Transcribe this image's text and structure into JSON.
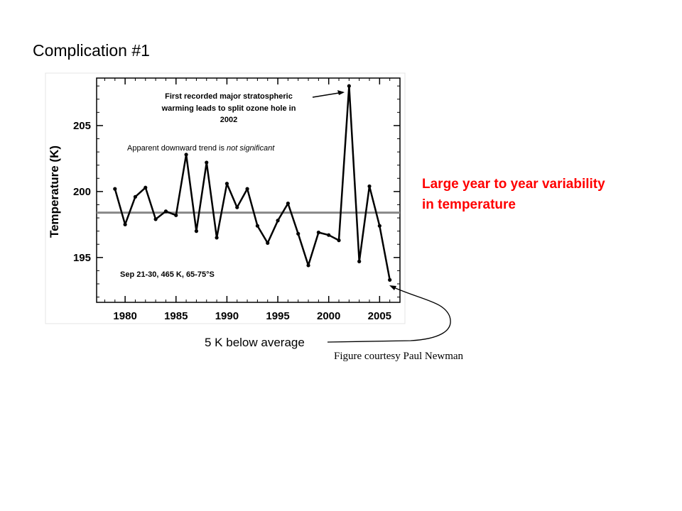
{
  "slide": {
    "title": "Complication #1",
    "side_note_lines": [
      "Large year to year variability",
      "in temperature"
    ],
    "callout": "5 K below average",
    "credit": "Figure courtesy Paul Newman"
  },
  "colors": {
    "side_note": "#ff0000",
    "series": "#000000",
    "mean_line": "#888888",
    "background": "#ffffff"
  },
  "chart_data": {
    "type": "line",
    "title": "",
    "xlabel": "",
    "ylabel": "Temperature (K)",
    "xlim": [
      1977.2,
      2007
    ],
    "ylim": [
      191.6,
      208.6
    ],
    "xticks": [
      1980,
      1985,
      1990,
      1995,
      2000,
      2005
    ],
    "yticks": [
      195,
      200,
      205
    ],
    "grid": false,
    "mean_value": 198.4,
    "series": [
      {
        "x": [
          1979,
          1980,
          1981,
          1982,
          1983,
          1984,
          1985,
          1986,
          1987,
          1988,
          1989,
          1990,
          1991,
          1992,
          1993,
          1994,
          1995,
          1996,
          1997,
          1998,
          1999,
          2000,
          2001,
          2002,
          2003,
          2004,
          2005,
          2006
        ],
        "y": [
          200.2,
          197.5,
          199.6,
          200.3,
          197.9,
          198.5,
          198.2,
          202.8,
          197.0,
          202.2,
          196.5,
          200.6,
          198.8,
          200.2,
          197.4,
          196.1,
          197.8,
          199.1,
          196.8,
          194.4,
          196.9,
          196.7,
          196.3,
          208.0,
          194.7,
          200.4,
          197.4,
          193.3
        ]
      }
    ],
    "annotations": {
      "warming_lines": [
        "First recorded major stratospheric",
        "warming leads to split ozone hole in",
        "2002"
      ],
      "trend_prefix": "Apparent downward trend is ",
      "trend_emphasis": "not significant",
      "conditions": "Sep 21-30, 465 K, 65-75°S"
    }
  }
}
